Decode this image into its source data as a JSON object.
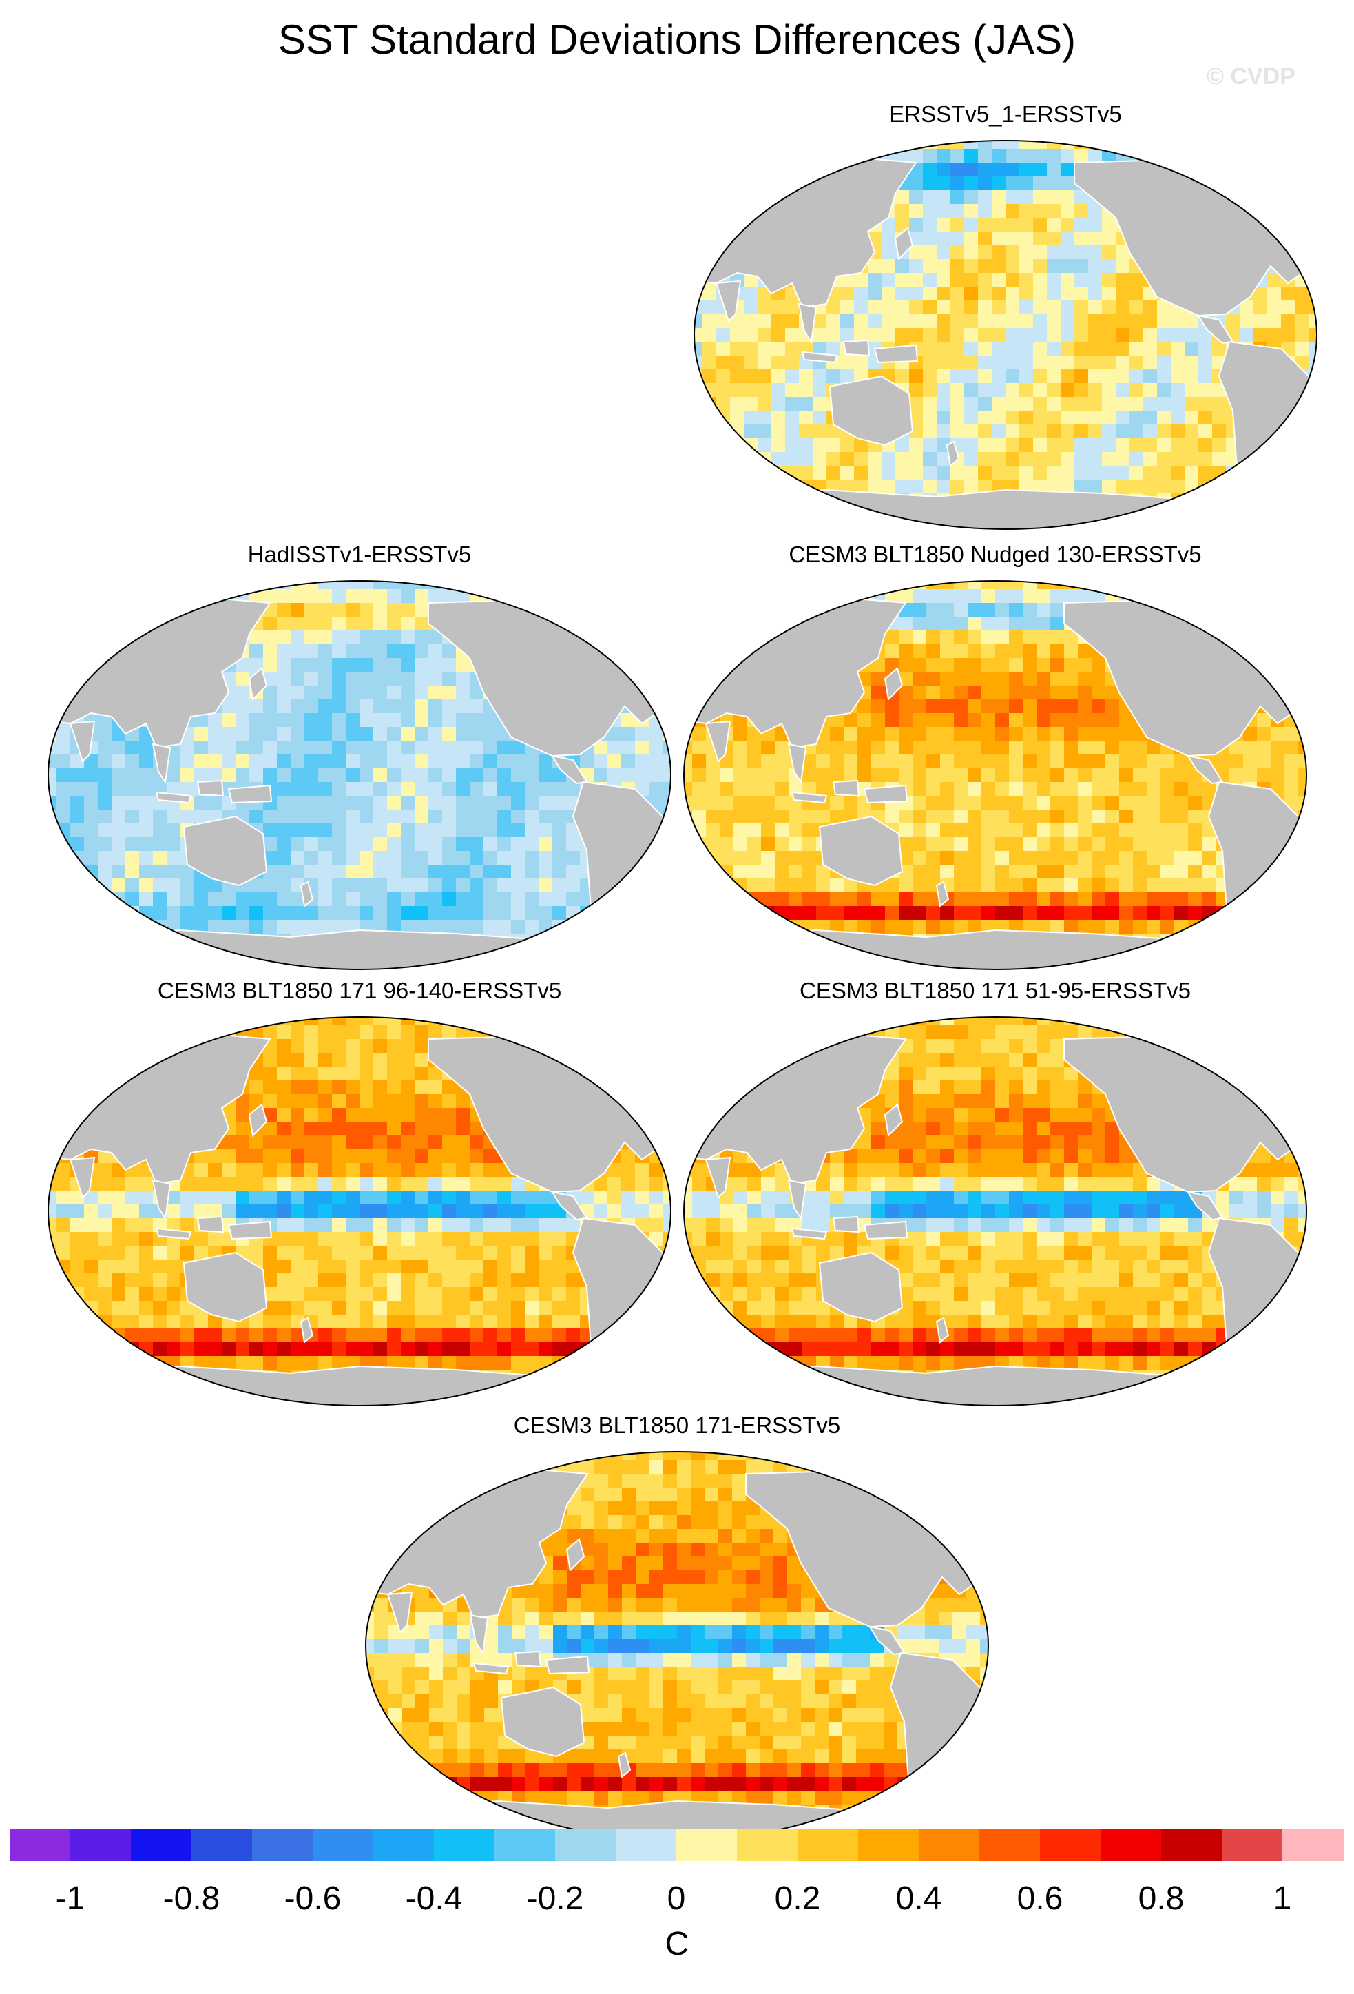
{
  "title": "SST Standard Deviations Differences (JAS)",
  "watermark": "© CVDP",
  "panels": [
    {
      "label": "ERSSTv5_1-ERSSTv5",
      "pattern": "near-zero-mixed"
    },
    {
      "label": "HadISSTv1-ERSSTv5",
      "pattern": "mostly-negative"
    },
    {
      "label": "CESM3 BLT1850 Nudged 130-ERSSTv5",
      "pattern": "positive-extratropics"
    },
    {
      "label": "CESM3 BLT1850 171 96-140-ERSSTv5",
      "pattern": "positive-with-eq-negative"
    },
    {
      "label": "CESM3 BLT1850 171 51-95-ERSSTv5",
      "pattern": "positive-with-eq-negative"
    },
    {
      "label": "CESM3 BLT1850 171-ERSSTv5",
      "pattern": "positive-with-eq-negative"
    }
  ],
  "colorbar": {
    "units": "C",
    "tick_labels": [
      "-1",
      "-0.8",
      "-0.6",
      "-0.4",
      "-0.2",
      "0",
      "0.2",
      "0.4",
      "0.6",
      "0.8",
      "1"
    ],
    "colors": [
      "#8a2be2",
      "#5a1ee8",
      "#1414f0",
      "#2a4fe0",
      "#3a72e6",
      "#2f8ef2",
      "#1da6f5",
      "#12c0f8",
      "#5ccaf5",
      "#9fd6f0",
      "#c6e6f7",
      "#fff7a8",
      "#ffe05a",
      "#ffc624",
      "#ffa800",
      "#ff8600",
      "#ff5a00",
      "#ff2a00",
      "#f20000",
      "#c80000",
      "#e24646",
      "#ffb6bc"
    ],
    "land_color": "#c0c0c0",
    "coast_color": "#ffffff"
  }
}
